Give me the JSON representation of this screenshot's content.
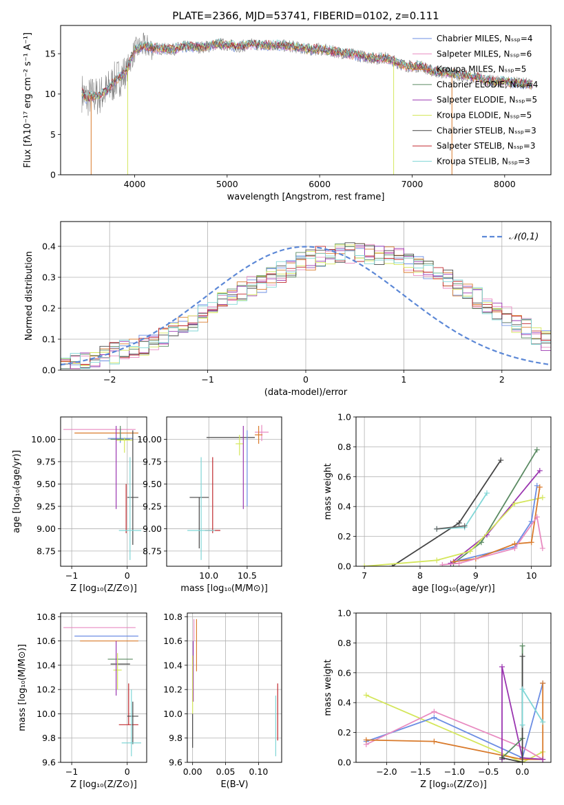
{
  "chart_data": [
    {
      "id": "spectrum",
      "type": "line",
      "title": "PLATE=2366, MJD=53741, FIBERID=0102, z=0.111",
      "xlabel": "wavelength [Angstrom, rest frame]",
      "ylabel": "Flux [fλ10⁻¹⁷ erg cm⁻² s⁻¹ A⁻¹]",
      "xlim": [
        3200,
        8500
      ],
      "ylim": [
        0,
        18.5
      ],
      "xticks": [
        4000,
        5000,
        6000,
        7000,
        8000
      ],
      "yticks": [
        0,
        5,
        10,
        15
      ],
      "legend_position": "top-right",
      "series": [
        {
          "name": "Chabrier MILES, Nₛₛₚ=4",
          "color": "#6b8de3"
        },
        {
          "name": "Salpeter MILES, Nₛₛₚ=6",
          "color": "#e88ac0"
        },
        {
          "name": "Kroupa MILES, Nₛₛₚ=5",
          "color": "#d97a2b"
        },
        {
          "name": "Chabrier ELODIE, Nₛₛₚ=4",
          "color": "#5a8a62"
        },
        {
          "name": "Salpeter ELODIE, Nₛₛₚ=5",
          "color": "#9a35b0"
        },
        {
          "name": "Kroupa ELODIE, Nₛₛₚ=5",
          "color": "#d4e65a"
        },
        {
          "name": "Chabrier STELIB, Nₛₛₚ=3",
          "color": "#444444"
        },
        {
          "name": "Salpeter STELIB, Nₛₛₚ=3",
          "color": "#c0282d"
        },
        {
          "name": "Kroupa STELIB, Nₛₛₚ=3",
          "color": "#7fd6d6"
        }
      ],
      "data_color": "#808080",
      "x": [
        3430,
        3480,
        3530,
        3600,
        3700,
        3800,
        3900,
        4000,
        4100,
        4200,
        4300,
        4400,
        4500,
        4600,
        4700,
        4800,
        4900,
        5000,
        5100,
        5200,
        5300,
        5400,
        5500,
        5600,
        5700,
        5800,
        5900,
        6000,
        6100,
        6200,
        6300,
        6400,
        6500,
        6600,
        6700,
        6800,
        6900,
        7000,
        7100,
        7200,
        7300,
        7400,
        7500,
        7600,
        7700,
        7800,
        7900,
        8000,
        8100,
        8200,
        8300
      ],
      "y": [
        10.2,
        9.4,
        9.8,
        9.7,
        10.4,
        11.8,
        12.6,
        15.4,
        16.0,
        15.7,
        15.6,
        15.5,
        15.8,
        15.9,
        15.8,
        15.9,
        16.2,
        16.1,
        15.9,
        16.0,
        16.2,
        16.0,
        16.1,
        16.0,
        15.9,
        15.7,
        15.5,
        15.6,
        15.3,
        15.2,
        15.0,
        14.8,
        14.6,
        14.4,
        14.5,
        14.1,
        13.6,
        13.4,
        13.5,
        12.9,
        12.7,
        12.6,
        12.4,
        12.2,
        12.1,
        11.7,
        11.5,
        11.6,
        11.4,
        11.3,
        11.2
      ]
    },
    {
      "id": "residual-histogram",
      "type": "bar",
      "xlabel": "(data-model)/error",
      "ylabel": "Normed distribution",
      "xlim": [
        -2.5,
        2.5
      ],
      "ylim": [
        0,
        0.48
      ],
      "xticks": [
        -2,
        -1,
        0,
        1,
        2
      ],
      "yticks": [
        0.0,
        0.1,
        0.2,
        0.3,
        0.4
      ],
      "grid": true,
      "legend": "𝒩(0,1)",
      "legend_position": "top-right",
      "bin_width": 0.1,
      "bin_start": -2.5,
      "reference_color": "#5b87d6",
      "values": [
        0.018,
        0.022,
        0.03,
        0.036,
        0.045,
        0.055,
        0.062,
        0.072,
        0.082,
        0.095,
        0.105,
        0.122,
        0.142,
        0.16,
        0.182,
        0.205,
        0.222,
        0.24,
        0.255,
        0.268,
        0.285,
        0.302,
        0.318,
        0.332,
        0.346,
        0.356,
        0.366,
        0.372,
        0.378,
        0.38,
        0.38,
        0.378,
        0.372,
        0.366,
        0.358,
        0.348,
        0.336,
        0.322,
        0.308,
        0.292,
        0.272,
        0.252,
        0.232,
        0.212,
        0.192,
        0.172,
        0.152,
        0.132,
        0.114,
        0.098
      ]
    },
    {
      "id": "age-vs-z",
      "type": "scatter",
      "xlabel": "Z [log₁₀(Z/Z⊙)]",
      "ylabel": "age  [log₁₀(age/yr)]",
      "xlim": [
        -1.2,
        0.35
      ],
      "ylim": [
        8.58,
        10.25
      ],
      "xticks": [
        -1,
        0
      ],
      "yticks": [
        8.75,
        9.0,
        9.25,
        9.5,
        9.75,
        10.0
      ],
      "points": [
        {
          "color": "#e88ac0",
          "x": [
            -1.15,
            0.15
          ],
          "y": 10.11,
          "yerr": [
            10.11,
            10.11
          ]
        },
        {
          "color": "#d97a2b",
          "x": [
            -0.95,
            0.2
          ],
          "y": 10.07,
          "yerr": [
            10.07,
            10.07
          ]
        },
        {
          "color": "#6b8de3",
          "x": [
            -0.35,
            0.1
          ],
          "y": 10.01,
          "yerr": [
            9.96,
            10.12
          ]
        },
        {
          "color": "#5a8a62",
          "x": [
            -0.3,
            0.05
          ],
          "y": 10.0,
          "yerr": [
            9.98,
            10.15
          ]
        },
        {
          "color": "#d4e65a",
          "x": [
            -0.2,
            0.1
          ],
          "y": 9.99,
          "yerr": [
            9.85,
            10.02
          ]
        },
        {
          "color": "#9a35b0",
          "x": [
            -0.2,
            -0.2
          ],
          "y": 9.7,
          "yerr": [
            9.22,
            10.15
          ]
        },
        {
          "color": "#444444",
          "x": [
            0.0,
            0.2
          ],
          "y": 9.35,
          "yerr": [
            8.82,
            10.1
          ]
        },
        {
          "color": "#c0282d",
          "x": [
            -0.02,
            -0.02
          ],
          "y": 9.3,
          "yerr": [
            8.95,
            9.5
          ]
        },
        {
          "color": "#7fd6d6",
          "x": [
            -0.15,
            0.25
          ],
          "y": 8.98,
          "yerr": [
            8.65,
            9.8
          ]
        }
      ]
    },
    {
      "id": "age-vs-mass",
      "type": "scatter",
      "xlabel": "mass [log₁₀(M/M⊙)]",
      "ylabel": "",
      "xlim": [
        9.45,
        10.95
      ],
      "ylim": [
        8.58,
        10.25
      ],
      "xticks": [
        10.0,
        10.5
      ],
      "yticks": [
        8.75,
        9.0,
        9.25,
        9.5,
        9.75,
        10.0
      ],
      "points": [
        {
          "color": "#e88ac0",
          "x": [
            10.6,
            10.78
          ],
          "y": 10.08,
          "yerr": [
            9.98,
            10.16
          ]
        },
        {
          "color": "#d97a2b",
          "x": [
            10.6,
            10.7
          ],
          "y": 10.05,
          "yerr": [
            9.95,
            10.15
          ]
        },
        {
          "color": "#444444",
          "x": [
            9.97,
            10.6
          ],
          "y": 10.02,
          "yerr": [
            10.02,
            10.02
          ]
        },
        {
          "color": "#d4e65a",
          "x": [
            10.35,
            10.45
          ],
          "y": 9.95,
          "yerr": [
            9.82,
            10.05
          ]
        },
        {
          "color": "#9a35b0",
          "x": [
            10.45,
            10.45
          ],
          "y": 9.7,
          "yerr": [
            9.22,
            10.15
          ]
        },
        {
          "color": "#6b8de3",
          "x": [
            10.5,
            10.5
          ],
          "y": 9.65,
          "yerr": [
            9.25,
            10.1
          ]
        },
        {
          "color": "#444444",
          "x": [
            9.75,
            10.0
          ],
          "y": 9.35,
          "yerr": [
            8.78,
            9.35
          ]
        },
        {
          "color": "#c0282d",
          "x": [
            9.95,
            10.15
          ],
          "y": 8.98,
          "yerr": [
            8.95,
            9.8
          ]
        },
        {
          "color": "#7fd6d6",
          "x": [
            9.72,
            10.08
          ],
          "y": 8.98,
          "yerr": [
            8.65,
            9.8
          ]
        }
      ]
    },
    {
      "id": "mass-weight-vs-age",
      "type": "line",
      "xlabel": "age  [log₁₀(age/yr)]",
      "ylabel": "mass weight",
      "xlim": [
        6.85,
        10.35
      ],
      "ylim": [
        0,
        1.0
      ],
      "xticks": [
        7,
        8,
        9,
        10
      ],
      "yticks": [
        0.0,
        0.2,
        0.4,
        0.6,
        0.8,
        1.0
      ],
      "grid": true,
      "series": [
        {
          "color": "#444444",
          "x": [
            7.5,
            8.7,
            9.45
          ],
          "y": [
            0.0,
            0.29,
            0.71
          ]
        },
        {
          "color": "#5a8a62",
          "x": [
            8.6,
            9.1,
            10.1
          ],
          "y": [
            0.02,
            0.16,
            0.78
          ]
        },
        {
          "color": "#9a35b0",
          "x": [
            8.55,
            9.2,
            10.15
          ],
          "y": [
            0.02,
            0.21,
            0.64
          ]
        },
        {
          "color": "#d4e65a",
          "x": [
            7.0,
            8.3,
            8.9,
            9.7,
            10.2
          ],
          "y": [
            0.0,
            0.04,
            0.1,
            0.42,
            0.46
          ]
        },
        {
          "color": "#7fd6d6",
          "x": [
            8.3,
            8.8,
            9.2
          ],
          "y": [
            0.25,
            0.26,
            0.49
          ]
        },
        {
          "color": "#6b8de3",
          "x": [
            8.6,
            9.7,
            10.0,
            10.1
          ],
          "y": [
            0.03,
            0.13,
            0.3,
            0.54
          ]
        },
        {
          "color": "#d97a2b",
          "x": [
            8.6,
            9.0,
            9.7,
            10.0,
            10.15
          ],
          "y": [
            0.03,
            0.05,
            0.15,
            0.16,
            0.53
          ]
        },
        {
          "color": "#e88ac0",
          "x": [
            8.4,
            8.7,
            9.7,
            10.1,
            10.2
          ],
          "y": [
            0.01,
            0.02,
            0.12,
            0.33,
            0.12
          ]
        },
        {
          "color": "#666666",
          "x": [
            8.3,
            8.8
          ],
          "y": [
            0.25,
            0.27
          ]
        }
      ]
    },
    {
      "id": "mass-vs-z",
      "type": "scatter",
      "xlabel": "Z [log₁₀(Z/Z⊙)]",
      "ylabel": "mass [log₁₀(M/M⊙)]",
      "xlim": [
        -1.2,
        0.35
      ],
      "ylim": [
        9.6,
        10.83
      ],
      "xticks": [
        -1,
        0
      ],
      "yticks": [
        9.6,
        9.8,
        10.0,
        10.2,
        10.4,
        10.6,
        10.8
      ],
      "points": [
        {
          "color": "#e88ac0",
          "x": [
            -1.15,
            0.15
          ],
          "y": 10.71,
          "yerr": [
            10.71,
            10.71
          ]
        },
        {
          "color": "#6b8de3",
          "x": [
            -0.95,
            0.2
          ],
          "y": 10.64,
          "yerr": [
            10.64,
            10.64
          ]
        },
        {
          "color": "#d97a2b",
          "x": [
            -0.85,
            0.2
          ],
          "y": 10.6,
          "yerr": [
            10.6,
            10.6
          ]
        },
        {
          "color": "#5a8a62",
          "x": [
            -0.35,
            0.1
          ],
          "y": 10.45,
          "yerr": [
            10.45,
            10.45
          ]
        },
        {
          "color": "#444444",
          "x": [
            -0.3,
            0.05
          ],
          "y": 10.41,
          "yerr": [
            10.41,
            10.41
          ]
        },
        {
          "color": "#d4e65a",
          "x": [
            -0.25,
            -0.1
          ],
          "y": 10.36,
          "yerr": [
            10.2,
            10.5
          ]
        },
        {
          "color": "#9a35b0",
          "x": [
            -0.2,
            -0.2
          ],
          "y": 10.4,
          "yerr": [
            10.15,
            10.6
          ]
        },
        {
          "color": "#c0282d",
          "x": [
            -0.15,
            0.2
          ],
          "y": 9.91,
          "yerr": [
            9.91,
            10.25
          ]
        },
        {
          "color": "#444444",
          "x": [
            0.0,
            0.2
          ],
          "y": 9.98,
          "yerr": [
            9.75,
            10.1
          ]
        },
        {
          "color": "#7fd6d6",
          "x": [
            -0.1,
            0.25
          ],
          "y": 9.76,
          "yerr": [
            9.65,
            10.2
          ]
        }
      ]
    },
    {
      "id": "mass-vs-ebv",
      "type": "scatter",
      "xlabel": "E(B-V)",
      "ylabel": "",
      "xlim": [
        -0.008,
        0.135
      ],
      "ylim": [
        9.6,
        10.83
      ],
      "xticks": [
        0.0,
        0.05,
        0.1
      ],
      "tick_labels": [
        "0.00",
        "0.05",
        "0.10"
      ],
      "yticks": [
        9.6,
        9.8,
        10.0,
        10.2,
        10.4,
        10.6,
        10.8
      ],
      "points": [
        {
          "color": "#e88ac0",
          "x": 0.002,
          "yerr": [
            10.6,
            10.78
          ]
        },
        {
          "color": "#d97a2b",
          "x": 0.006,
          "yerr": [
            10.35,
            10.78
          ]
        },
        {
          "color": "#9a35b0",
          "x": 0.001,
          "yerr": [
            10.1,
            10.6
          ]
        },
        {
          "color": "#d4e65a",
          "x": 0.0,
          "yerr": [
            10.0,
            10.48
          ]
        },
        {
          "color": "#444444",
          "x": 0.0,
          "yerr": [
            9.72,
            10.0
          ]
        },
        {
          "color": "#7fd6d6",
          "x": 0.126,
          "yerr": [
            9.65,
            10.15
          ]
        },
        {
          "color": "#c0282d",
          "x": 0.129,
          "yerr": [
            9.78,
            10.25
          ]
        }
      ]
    },
    {
      "id": "mass-weight-vs-z",
      "type": "line",
      "xlabel": "Z [log₁₀(Z/Z⊙)]",
      "ylabel": "mass weight",
      "xlim": [
        -2.45,
        0.42
      ],
      "ylim": [
        0,
        1.0
      ],
      "xticks": [
        -2.0,
        -1.5,
        -1.0,
        -0.5,
        0.0
      ],
      "yticks": [
        0.0,
        0.2,
        0.4,
        0.6,
        0.8,
        1.0
      ],
      "grid": true,
      "series": [
        {
          "color": "#d4e65a",
          "x": [
            -2.3,
            0.0,
            0.3
          ],
          "y": [
            0.45,
            0.0,
            0.07
          ]
        },
        {
          "color": "#6b8de3",
          "x": [
            -2.3,
            -1.3,
            0.0,
            0.3
          ],
          "y": [
            0.14,
            0.3,
            0.03,
            0.53
          ]
        },
        {
          "color": "#e88ac0",
          "x": [
            -2.3,
            -1.3,
            0.0,
            0.3
          ],
          "y": [
            0.12,
            0.34,
            0.1,
            0.02
          ]
        },
        {
          "color": "#d97a2b",
          "x": [
            -2.3,
            -1.3,
            0.0,
            0.3,
            0.3
          ],
          "y": [
            0.15,
            0.14,
            0.02,
            0.02,
            0.53
          ]
        },
        {
          "color": "#9a35b0",
          "x": [
            -0.3,
            -0.3,
            0.0,
            0.3
          ],
          "y": [
            0.02,
            0.64,
            0.03,
            0.02
          ]
        },
        {
          "color": "#5a8a62",
          "x": [
            -0.3,
            0.0,
            0.0
          ],
          "y": [
            0.03,
            0.16,
            0.78
          ]
        },
        {
          "color": "#444444",
          "x": [
            -0.3,
            0.0,
            0.0
          ],
          "y": [
            0.03,
            0.0,
            0.71
          ]
        },
        {
          "color": "#7fd6d6",
          "x": [
            0.0,
            0.0,
            0.3
          ],
          "y": [
            0.25,
            0.49,
            0.27
          ]
        }
      ]
    }
  ]
}
